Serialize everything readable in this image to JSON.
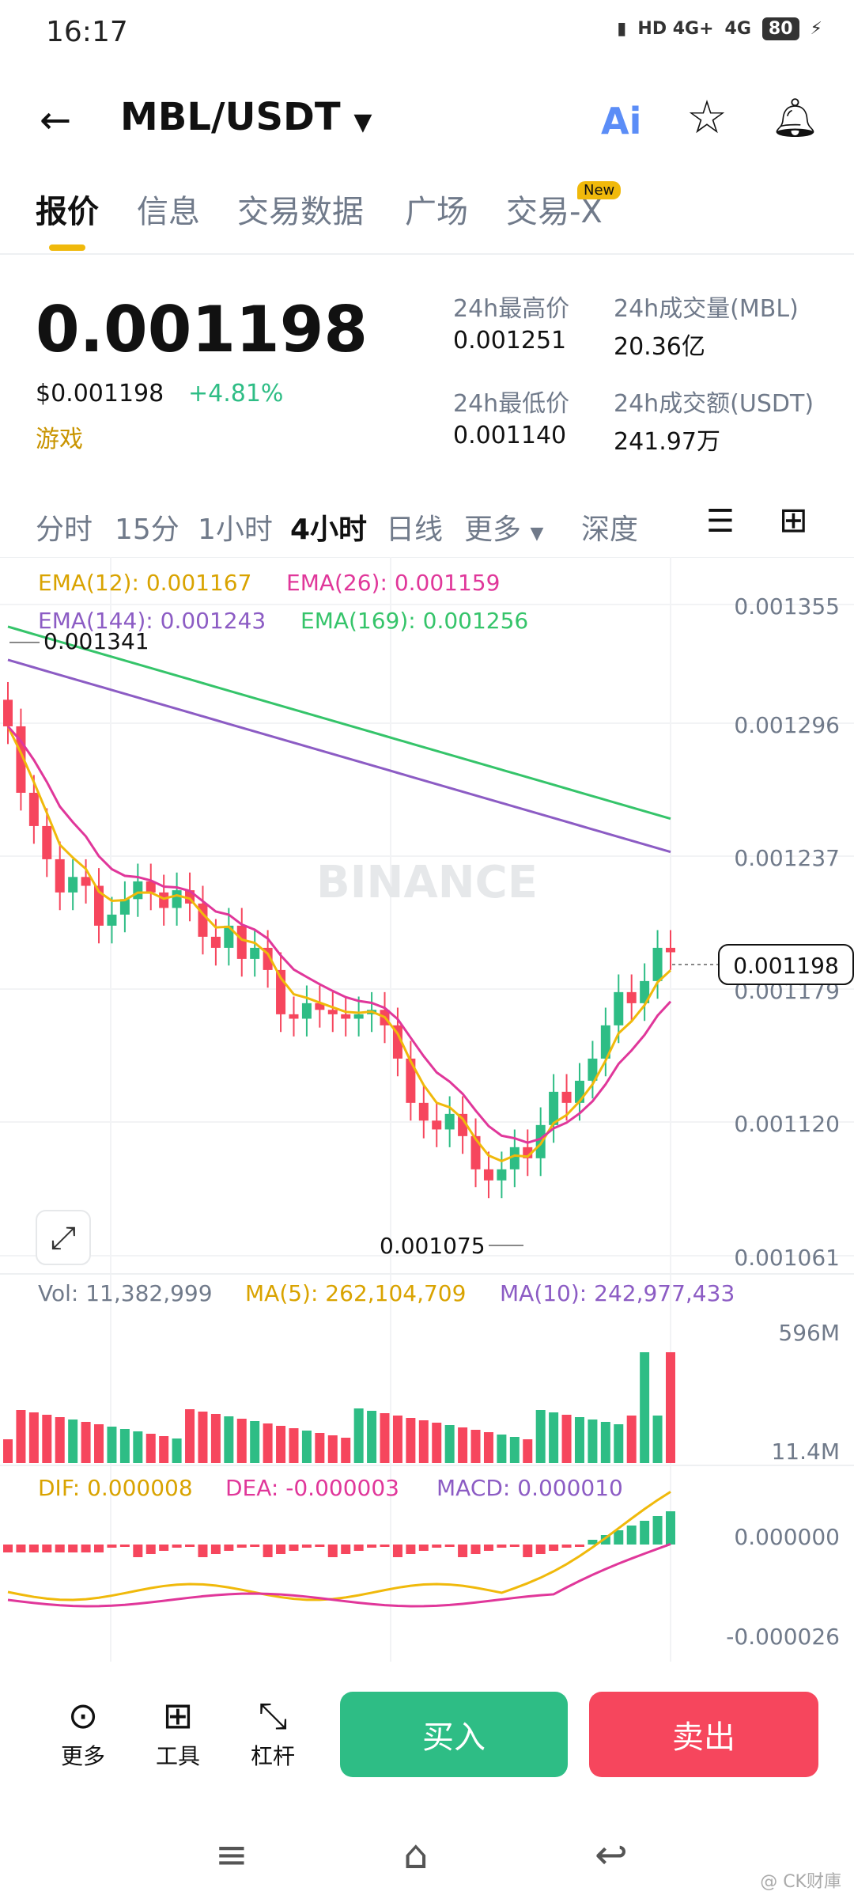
{
  "status_bar": {
    "time": "16:17",
    "network1": "HD 4G+",
    "network2": "4G",
    "battery": "80"
  },
  "header": {
    "back_icon": "arrow-left-icon",
    "pair": "MBL/USDT",
    "ai_label": "Ai"
  },
  "tabs": [
    {
      "label": "报价"
    },
    {
      "label": "信息"
    },
    {
      "label": "交易数据"
    },
    {
      "label": "广场"
    },
    {
      "label": "交易-X"
    }
  ],
  "tab_badge": "New",
  "ticker": {
    "price": "0.001198",
    "usd_price": "$0.001198",
    "change": "+4.81%",
    "category": "游戏",
    "high_label": "24h最高价",
    "high_value": "0.001251",
    "low_label": "24h最低价",
    "low_value": "0.001140",
    "vol_label": "24h成交量(MBL)",
    "vol_value": "20.36亿",
    "amount_label": "24h成交额(USDT)",
    "amount_value": "241.97万"
  },
  "intervals": [
    {
      "label": "分时"
    },
    {
      "label": "15分"
    },
    {
      "label": "1小时"
    },
    {
      "label": "4小时"
    },
    {
      "label": "日线"
    },
    {
      "label": "更多"
    },
    {
      "label": "深度"
    }
  ],
  "chart_data": {
    "type": "candlestick",
    "ema_labels": {
      "ema12": "EMA(12): 0.001167",
      "ema26": "EMA(26): 0.001159",
      "ema144": "EMA(144): 0.001243",
      "ema169": "EMA(169): 0.001256"
    },
    "price_ticks": [
      "0.001355",
      "0.001296",
      "0.001237",
      "0.001179",
      "0.001120",
      "0.001061"
    ],
    "current_price_label": "0.001198",
    "high_marker": "0.001341",
    "low_marker": "0.001075",
    "watermark": "BINANCE",
    "ylim": [
      0.001061,
      0.001355
    ],
    "candles_close_approx": [
      0.0013,
      0.00127,
      0.001255,
      0.00124,
      0.001225,
      0.001232,
      0.001228,
      0.00121,
      0.001215,
      0.001222,
      0.00123,
      0.001225,
      0.001218,
      0.001226,
      0.00122,
      0.001205,
      0.0012,
      0.00121,
      0.001195,
      0.0012,
      0.00119,
      0.00117,
      0.001168,
      0.001175,
      0.001172,
      0.00117,
      0.001168,
      0.00117,
      0.001172,
      0.001165,
      0.00115,
      0.00113,
      0.001122,
      0.001118,
      0.001125,
      0.001115,
      0.0011,
      0.001095,
      0.0011,
      0.00111,
      0.001105,
      0.00112,
      0.001135,
      0.00113,
      0.00114,
      0.00115,
      0.001165,
      0.00118,
      0.001175,
      0.001185,
      0.0012,
      0.001198
    ],
    "volume": {
      "label": "Vol: 11,382,999",
      "ma5": "MA(5): 262,104,709",
      "ma10": "MA(10): 242,977,433",
      "ticks": [
        "596M",
        "11.4M"
      ]
    },
    "macd": {
      "dif": "DIF: 0.000008",
      "dea": "DEA: -0.000003",
      "macd": "MACD: 0.000010",
      "ticks": [
        "0.000000",
        "-0.000026"
      ]
    }
  },
  "bottom_bar": {
    "more": "更多",
    "tools": "工具",
    "leverage": "杠杆",
    "buy": "买入",
    "sell": "卖出"
  },
  "watermark": "@ CK财庫",
  "colors": {
    "up": "#2ebd85",
    "down": "#f6465d",
    "accent": "#f0b90b",
    "ema12": "#f0b90b",
    "ema26": "#e0379a",
    "ema144": "#8c5cc4",
    "ema169": "#35c46a"
  }
}
